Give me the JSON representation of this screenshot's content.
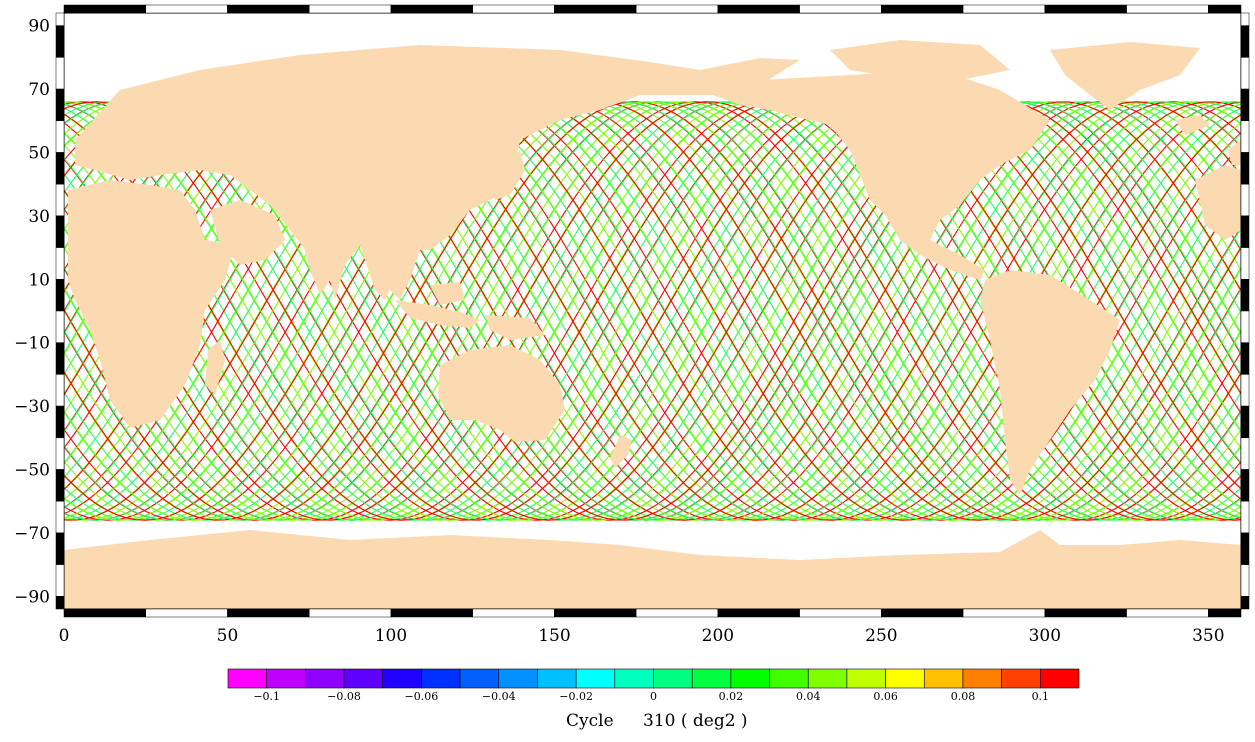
{
  "map": {
    "x_axis": {
      "min": 0,
      "max": 360,
      "ticks": [
        "0",
        "50",
        "100",
        "150",
        "200",
        "250",
        "300",
        "350"
      ],
      "tick_values": [
        0,
        50,
        100,
        150,
        200,
        250,
        300,
        350
      ]
    },
    "y_axis": {
      "min": -94,
      "max": 94,
      "ticks": [
        "90",
        "70",
        "50",
        "30",
        "10",
        "−10",
        "−30",
        "−50",
        "−70",
        "−90"
      ],
      "tick_values": [
        90,
        70,
        50,
        30,
        10,
        -10,
        -30,
        -50,
        -70,
        -90
      ]
    },
    "land_color": "#fcdab1",
    "ocean_color": "#ffffff",
    "track_colors": [
      "#ff0000",
      "#00e000",
      "#20ff60",
      "#00f0a0",
      "#80ff00",
      "#e0ff00"
    ]
  },
  "colorbar": {
    "range": [
      -0.11,
      0.11
    ],
    "colors": [
      "#ff00ff",
      "#c000ff",
      "#9000ff",
      "#6000ff",
      "#2000ff",
      "#0030ff",
      "#0060ff",
      "#0090ff",
      "#00c0ff",
      "#00ffff",
      "#00ffc0",
      "#00ff80",
      "#00ff40",
      "#00ff00",
      "#40ff00",
      "#80ff00",
      "#c0ff00",
      "#ffff00",
      "#ffc000",
      "#ff8000",
      "#ff4000",
      "#ff0000"
    ],
    "labels": [
      "−0.1",
      "−0.08",
      "−0.06",
      "−0.04",
      "−0.02",
      "0",
      "0.02",
      "0.04",
      "0.06",
      "0.08",
      "0.1"
    ],
    "label_values": [
      -0.1,
      -0.08,
      -0.06,
      -0.04,
      -0.02,
      0,
      0.02,
      0.04,
      0.06,
      0.08,
      0.1
    ]
  },
  "caption": {
    "cycle_label": "Cycle",
    "cycle_value": "310 ( deg2 )"
  }
}
